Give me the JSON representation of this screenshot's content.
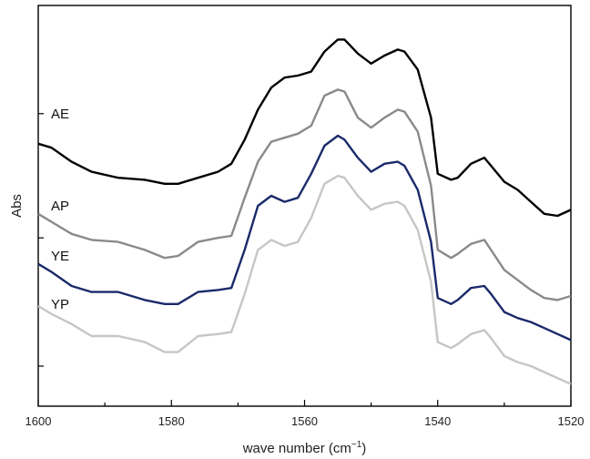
{
  "chart_data": {
    "type": "line",
    "xlabel": "wave number (cm",
    "xlabel_sup": "−1",
    "xlabel_close": ")",
    "ylabel": "Abs",
    "xlim": [
      1600,
      1520
    ],
    "x_ticks": [
      1600,
      1580,
      1560,
      1540,
      1520
    ],
    "x_tick_labels": [
      "1600",
      "1580",
      "1560",
      "1540",
      "1520"
    ],
    "ylim": [
      0,
      1
    ],
    "y_ticks": [
      0.1,
      0.42,
      0.73
    ],
    "grid": false,
    "legend": "inline labels at left",
    "series": [
      {
        "name": "AE",
        "color": "#000000",
        "x": [
          1600,
          1598,
          1595,
          1592,
          1588,
          1584,
          1581,
          1579,
          1576,
          1573,
          1571,
          1569,
          1567,
          1565,
          1563,
          1561,
          1559,
          1557,
          1555,
          1554,
          1552,
          1550,
          1548,
          1546,
          1545,
          1543,
          1541,
          1540,
          1538,
          1537,
          1535,
          1533,
          1532,
          1530,
          1528,
          1526,
          1524,
          1522,
          1520
        ],
        "y": [
          0.655,
          0.645,
          0.61,
          0.585,
          0.57,
          0.565,
          0.555,
          0.555,
          0.57,
          0.585,
          0.605,
          0.665,
          0.74,
          0.795,
          0.82,
          0.825,
          0.835,
          0.885,
          0.915,
          0.915,
          0.88,
          0.855,
          0.875,
          0.89,
          0.885,
          0.84,
          0.72,
          0.58,
          0.565,
          0.57,
          0.605,
          0.62,
          0.6,
          0.56,
          0.54,
          0.51,
          0.48,
          0.475,
          0.49
        ]
      },
      {
        "name": "AP",
        "color": "#8a8a8a",
        "x": [
          1600,
          1598,
          1595,
          1592,
          1588,
          1584,
          1581,
          1579,
          1576,
          1573,
          1571,
          1569,
          1567,
          1565,
          1563,
          1561,
          1559,
          1557,
          1555,
          1554,
          1552,
          1550,
          1548,
          1546,
          1545,
          1543,
          1541,
          1540,
          1538,
          1537,
          1535,
          1533,
          1532,
          1530,
          1528,
          1526,
          1524,
          1522,
          1520
        ],
        "y": [
          0.48,
          0.46,
          0.43,
          0.415,
          0.41,
          0.39,
          0.37,
          0.375,
          0.41,
          0.42,
          0.425,
          0.52,
          0.61,
          0.66,
          0.67,
          0.68,
          0.7,
          0.775,
          0.79,
          0.785,
          0.72,
          0.695,
          0.72,
          0.74,
          0.735,
          0.685,
          0.55,
          0.39,
          0.37,
          0.38,
          0.405,
          0.415,
          0.39,
          0.34,
          0.315,
          0.29,
          0.27,
          0.265,
          0.275
        ]
      },
      {
        "name": "YE",
        "color": "#1a2a6a",
        "x": [
          1600,
          1598,
          1595,
          1592,
          1588,
          1584,
          1581,
          1579,
          1576,
          1573,
          1571,
          1569,
          1567,
          1565,
          1563,
          1561,
          1559,
          1557,
          1555,
          1554,
          1552,
          1550,
          1548,
          1546,
          1545,
          1543,
          1541,
          1540,
          1538,
          1537,
          1535,
          1533,
          1532,
          1530,
          1528,
          1526,
          1524,
          1522,
          1520
        ],
        "y": [
          0.355,
          0.335,
          0.3,
          0.285,
          0.285,
          0.265,
          0.255,
          0.255,
          0.285,
          0.29,
          0.295,
          0.39,
          0.5,
          0.525,
          0.51,
          0.52,
          0.58,
          0.65,
          0.675,
          0.665,
          0.62,
          0.585,
          0.605,
          0.61,
          0.6,
          0.54,
          0.41,
          0.27,
          0.255,
          0.265,
          0.295,
          0.3,
          0.28,
          0.235,
          0.22,
          0.21,
          0.195,
          0.18,
          0.165
        ]
      },
      {
        "name": "YP",
        "color": "#c6c6c6",
        "x": [
          1600,
          1598,
          1595,
          1592,
          1588,
          1584,
          1581,
          1579,
          1576,
          1573,
          1571,
          1569,
          1567,
          1565,
          1563,
          1561,
          1559,
          1557,
          1555,
          1554,
          1552,
          1550,
          1548,
          1546,
          1545,
          1543,
          1541,
          1540,
          1538,
          1537,
          1535,
          1533,
          1532,
          1530,
          1528,
          1526,
          1524,
          1522,
          1520
        ],
        "y": [
          0.25,
          0.23,
          0.205,
          0.175,
          0.175,
          0.16,
          0.135,
          0.135,
          0.175,
          0.18,
          0.185,
          0.28,
          0.39,
          0.415,
          0.4,
          0.41,
          0.47,
          0.555,
          0.575,
          0.57,
          0.525,
          0.49,
          0.505,
          0.51,
          0.5,
          0.44,
          0.31,
          0.16,
          0.145,
          0.155,
          0.18,
          0.19,
          0.17,
          0.125,
          0.11,
          0.1,
          0.085,
          0.07,
          0.055
        ]
      }
    ],
    "labels": [
      {
        "text": "AE",
        "x": 1600,
        "y": 0.73
      },
      {
        "text": "AP",
        "x": 1600,
        "y": 0.5
      },
      {
        "text": "YE",
        "x": 1600,
        "y": 0.375
      },
      {
        "text": "YP",
        "x": 1600,
        "y": 0.255
      }
    ]
  }
}
